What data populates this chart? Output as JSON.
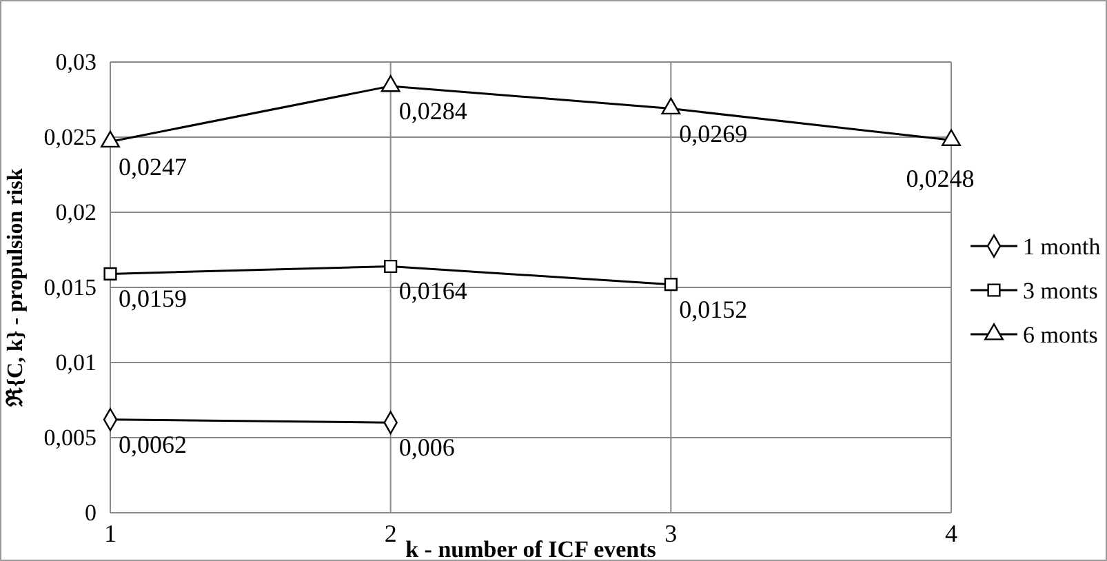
{
  "chart_data": {
    "type": "line",
    "xlabel": "k - number of ICF events",
    "ylabel": "ℜ{C, k} - propulsion risk",
    "x": [
      1,
      2,
      3,
      4
    ],
    "xlim": [
      1,
      4
    ],
    "xticks": [
      1,
      2,
      3,
      4
    ],
    "ylim": [
      0,
      0.03
    ],
    "yticks": [
      {
        "value": 0,
        "label": "0"
      },
      {
        "value": 0.005,
        "label": "0,005"
      },
      {
        "value": 0.01,
        "label": "0,01"
      },
      {
        "value": 0.015,
        "label": "0,015"
      },
      {
        "value": 0.02,
        "label": "0,02"
      },
      {
        "value": 0.025,
        "label": "0,025"
      },
      {
        "value": 0.03,
        "label": "0,03"
      }
    ],
    "grid": true,
    "legend": "right",
    "line_style": "solid",
    "series": [
      {
        "name": "1 month",
        "color": "#000000",
        "marker": "diamond",
        "values": [
          0.0062,
          0.006,
          null,
          null
        ],
        "value_labels": [
          "0,0062",
          "0,006",
          null,
          null
        ]
      },
      {
        "name": "3 monts",
        "color": "#000000",
        "marker": "square",
        "values": [
          0.0159,
          0.0164,
          0.0152,
          null
        ],
        "value_labels": [
          "0,0159",
          "0,0164",
          "0,0152",
          null
        ]
      },
      {
        "name": "6 monts",
        "color": "#000000",
        "marker": "triangle",
        "values": [
          0.0247,
          0.0284,
          0.0269,
          0.0248
        ],
        "value_labels": [
          "0,0247",
          "0,0284",
          "0,0269",
          "0,0248"
        ]
      }
    ]
  }
}
